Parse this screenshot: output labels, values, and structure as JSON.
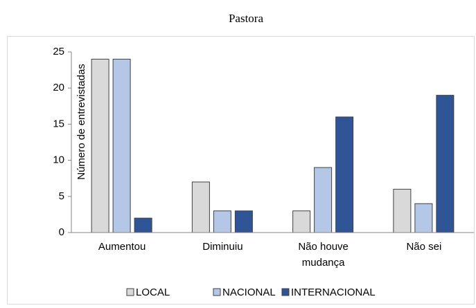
{
  "chart_data": {
    "type": "bar",
    "title": "Pastora",
    "y_label": "Número de entrevistadas",
    "categories": [
      "Aumentou",
      "Diminuiu",
      "Não houve mudança",
      "Não sei"
    ],
    "series": [
      {
        "name": "LOCAL",
        "color": "#d9d9d9",
        "values": [
          24,
          7,
          3,
          6
        ]
      },
      {
        "name": "NACIONAL",
        "color": "#b4c7e7",
        "values": [
          24,
          3,
          9,
          4
        ]
      },
      {
        "name": "INTERNACIONAL",
        "color": "#2f5597",
        "values": [
          2,
          3,
          16,
          19
        ]
      }
    ],
    "ylim": [
      0,
      25
    ],
    "yticks": [
      0,
      5,
      10,
      15,
      20,
      25
    ],
    "legend": "bottom"
  }
}
